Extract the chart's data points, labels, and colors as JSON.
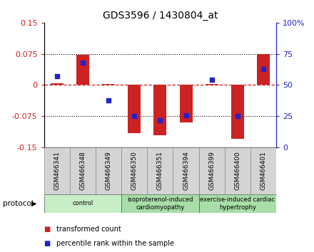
{
  "title": "GDS3596 / 1430804_at",
  "samples": [
    "GSM466341",
    "GSM466348",
    "GSM466349",
    "GSM466350",
    "GSM466351",
    "GSM466394",
    "GSM466399",
    "GSM466400",
    "GSM466401"
  ],
  "transformed_count": [
    0.005,
    0.073,
    0.003,
    -0.115,
    -0.12,
    -0.09,
    0.003,
    -0.13,
    0.075
  ],
  "percentile_rank": [
    57,
    68,
    38,
    25,
    22,
    26,
    54,
    25,
    63
  ],
  "ylim_left": [
    -0.15,
    0.15
  ],
  "ylim_right": [
    0,
    100
  ],
  "yticks_left": [
    -0.15,
    -0.075,
    0,
    0.075,
    0.15
  ],
  "yticks_right": [
    0,
    25,
    50,
    75,
    100
  ],
  "ytick_labels_left": [
    "-0.15",
    "-0.075",
    "0",
    "0.075",
    "0.15"
  ],
  "ytick_labels_right": [
    "0",
    "25",
    "50",
    "75",
    "100%"
  ],
  "bar_color": "#cc2222",
  "dot_color": "#2222cc",
  "groups": [
    {
      "label": "control",
      "start": 0,
      "end": 3,
      "color": "#c8eec8"
    },
    {
      "label": "isoproterenol-induced\ncardiomyopathy",
      "start": 3,
      "end": 6,
      "color": "#a8dda8"
    },
    {
      "label": "exercise-induced cardiac\nhypertrophy",
      "start": 6,
      "end": 9,
      "color": "#a8dda8"
    }
  ],
  "protocol_label": "protocol",
  "legend_items": [
    {
      "label": "transformed count",
      "color": "#cc2222"
    },
    {
      "label": "percentile rank within the sample",
      "color": "#2222cc"
    }
  ],
  "dotted_line_color": "#555555",
  "zero_line_color": "#cc2222",
  "bg_color": "#ffffff",
  "plot_bg_color": "#ffffff",
  "sample_box_color": "#d4d4d4",
  "bar_width": 0.5
}
